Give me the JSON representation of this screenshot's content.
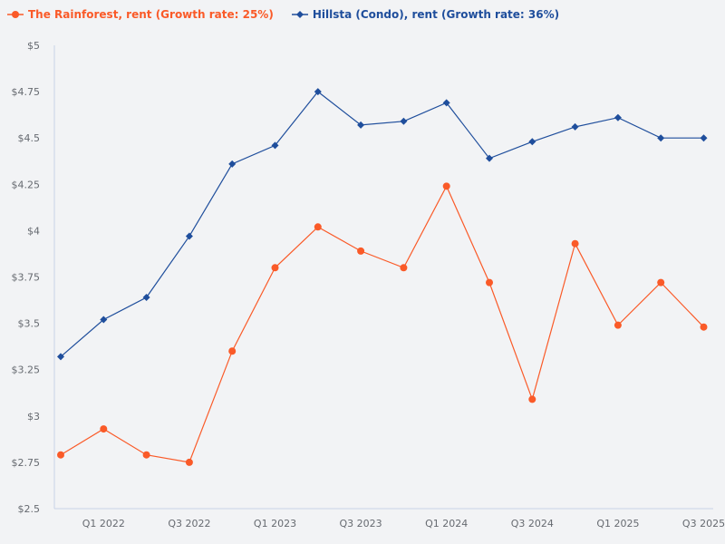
{
  "legend": {
    "series_0": "The Rainforest, rent (Growth rate: 25%)",
    "series_1": "Hillsta (Condo), rent (Growth rate: 36%)"
  },
  "colors": {
    "rainforest": "#fa5a28",
    "hillsta": "#1f4e9c",
    "axis": "#c8d3e6",
    "tick_text": "#666a70",
    "background": "#f2f3f5"
  },
  "chart_data": {
    "type": "line",
    "title": "",
    "xlabel": "",
    "ylabel": "",
    "x": [
      "Q4 2021",
      "Q1 2022",
      "Q2 2022",
      "Q3 2022",
      "Q4 2022",
      "Q1 2023",
      "Q2 2023",
      "Q3 2023",
      "Q4 2023",
      "Q1 2024",
      "Q2 2024",
      "Q3 2024",
      "Q4 2024",
      "Q1 2025",
      "Q2 2025",
      "Q3 2025"
    ],
    "x_tick_labels": [
      "Q1 2022",
      "Q3 2022",
      "Q1 2023",
      "Q3 2023",
      "Q1 2024",
      "Q3 2024",
      "Q1 2025",
      "Q3 2025"
    ],
    "y_tick_labels": [
      "$5",
      "$4.75",
      "$4.5",
      "$4.25",
      "$4",
      "$3.75",
      "$3.5",
      "$3.25",
      "$3",
      "$2.75",
      "$2.5"
    ],
    "ylim": [
      2.5,
      5
    ],
    "grid": false,
    "legend_position": "top-left",
    "series": [
      {
        "name": "The Rainforest, rent (Growth rate: 25%)",
        "color": "#fa5a28",
        "marker": "circle",
        "values": [
          2.79,
          2.93,
          2.79,
          2.75,
          3.35,
          3.8,
          4.02,
          3.89,
          3.8,
          4.24,
          3.72,
          3.09,
          3.93,
          3.49,
          3.72,
          3.48
        ]
      },
      {
        "name": "Hillsta (Condo), rent (Growth rate: 36%)",
        "color": "#1f4e9c",
        "marker": "diamond",
        "values": [
          3.32,
          3.52,
          3.64,
          3.97,
          4.36,
          4.46,
          4.75,
          4.57,
          4.59,
          4.69,
          4.39,
          4.48,
          4.56,
          4.61,
          4.5,
          4.5
        ]
      }
    ]
  }
}
